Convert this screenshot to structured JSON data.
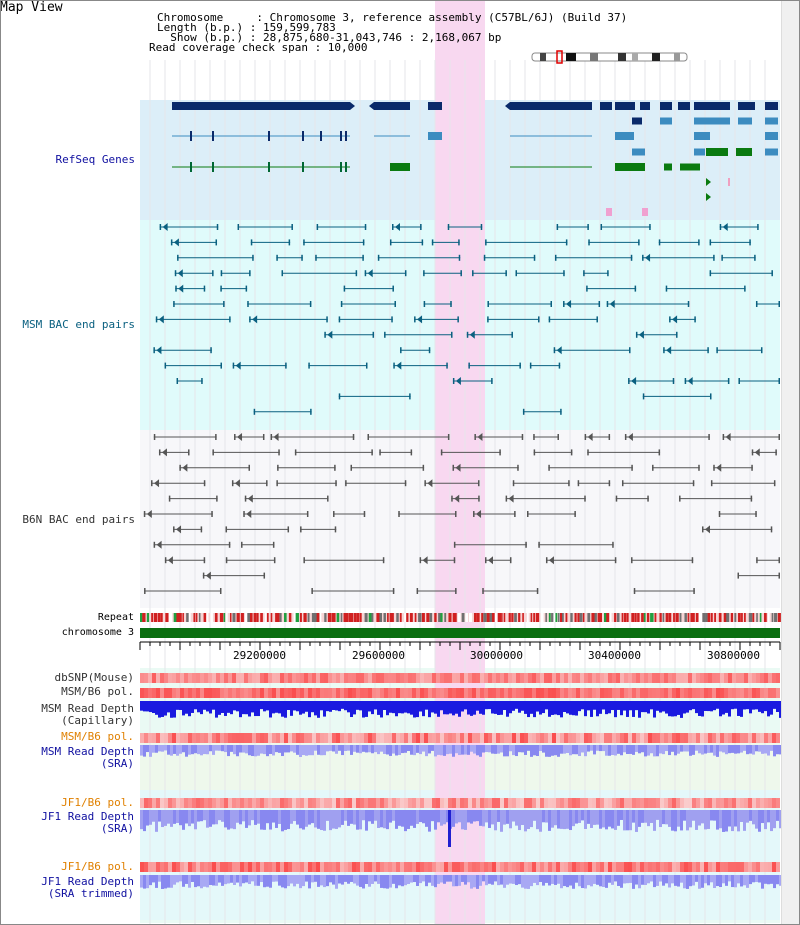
{
  "title": "Map View",
  "header": {
    "lines": [
      "Chromosome     : Chromosome 3, reference assembly (C57BL/6J) (Build 37)",
      "Length (b.p.) : 159,599,783",
      "  Show (b.p.) : 28,875,680-31,043,746 : 2,168,067 bp",
      "Read coverage check span : 10,000"
    ]
  },
  "tracks": {
    "refseq": "RefSeq Genes",
    "msm_bac": "MSM BAC end pairs",
    "b6n_bac": "B6N BAC end pairs",
    "repeat": "Repeat",
    "chromosome": "chromosome 3",
    "dbsnp": "dbSNP(Mouse)",
    "msm_b6_pol": "MSM/B6 pol.",
    "msm_depth_cap_1": "MSM Read Depth",
    "msm_depth_cap_2": "(Capillary)",
    "msm_b6_pol_sra": "MSM/B6 pol.",
    "msm_depth_sra_1": "MSM Read Depth",
    "msm_depth_sra_2": "(SRA)",
    "jf1_b6_pol_1": "JF1/B6 pol.",
    "jf1_depth_sra_1": "JF1 Read Depth",
    "jf1_depth_sra_2": "(SRA)",
    "jf1_b6_pol_2": "JF1/B6 pol.",
    "jf1_depth_trim_1": "JF1 Read Depth",
    "jf1_depth_trim_2": "(SRA trimmed)"
  },
  "axis": {
    "ticks": [
      "29200000",
      "29600000",
      "30000000",
      "30400000",
      "30800000"
    ]
  },
  "colors": {
    "refseq_bg": "#dceef8",
    "msm_bg": "#e0fbfb",
    "b6n_bg": "#f7f7fa",
    "highlight": "#f8d8f0",
    "gene_dark": "#0b2a6a",
    "gene_mid": "#3c8cc0",
    "gene_green": "#0a7a10",
    "msm_line": "#0a6080",
    "b6n_line": "#555555",
    "repeat_red": "#d02020",
    "chrom_green": "#0a6e10",
    "depth_blue": "#1a1ae0",
    "depth_light": "#8888f0",
    "label_blue": "#1010a0",
    "label_orange": "#e08000"
  }
}
